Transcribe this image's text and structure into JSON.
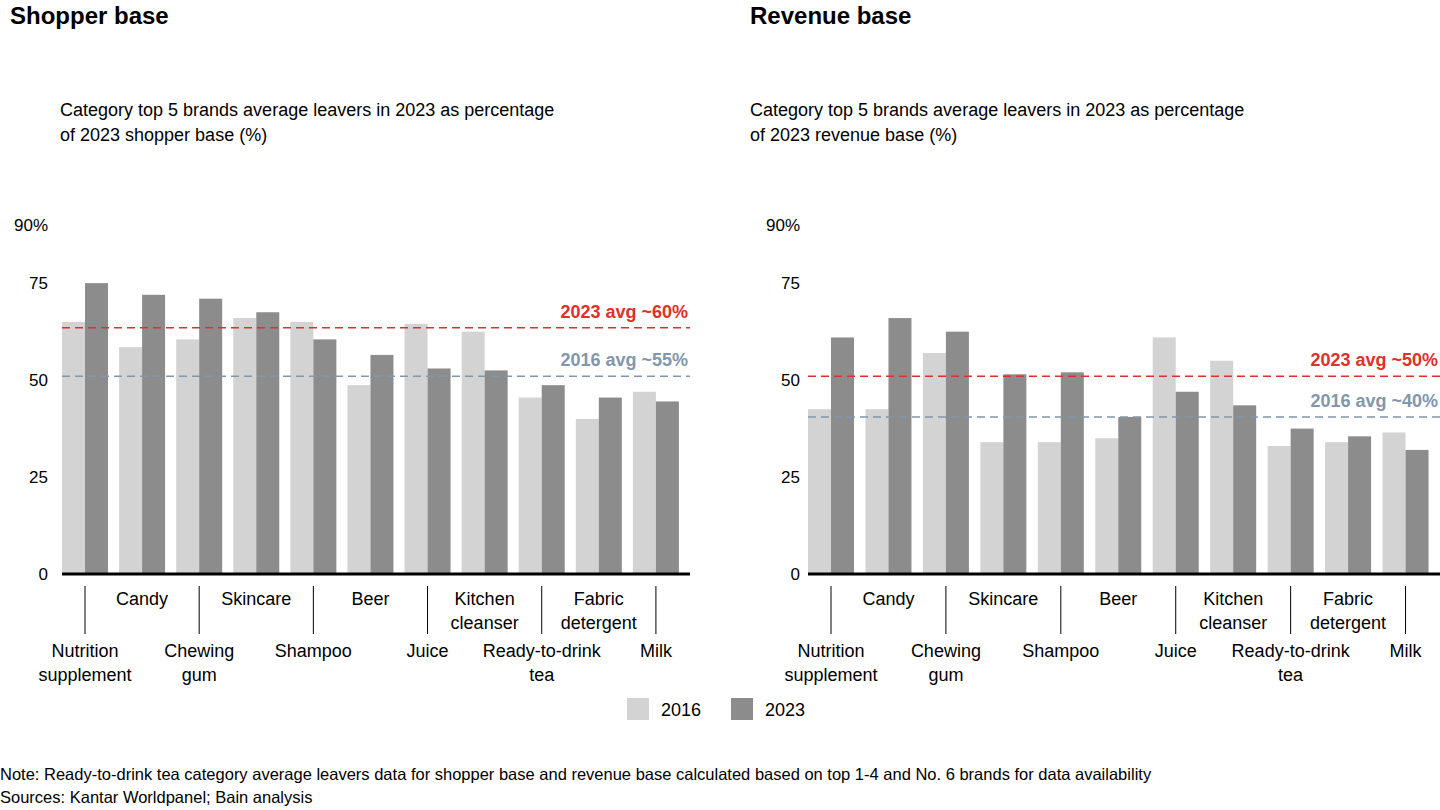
{
  "chart_data": [
    {
      "type": "bar",
      "title": "Shopper base",
      "subtitle": "Category top 5 brands average leavers in 2023 as percentage of 2023 shopper base (%)",
      "categories": [
        "Nutrition supplement",
        "Candy",
        "Chewing gum",
        "Skincare",
        "Shampoo",
        "Beer",
        "Juice",
        "Kitchen cleanser",
        "Ready-to-drink tea",
        "Fabric detergent",
        "Milk"
      ],
      "series": [
        {
          "name": "2016",
          "color": "#d3d3d3",
          "values": [
            65,
            58.5,
            60.5,
            66,
            65,
            48.7,
            64.5,
            62.5,
            45.5,
            40,
            47
          ]
        },
        {
          "name": "2023",
          "color": "#8c8c8c",
          "values": [
            75,
            72,
            71,
            67.5,
            60.5,
            56.5,
            53,
            52.5,
            48.7,
            45.5,
            44.5
          ]
        }
      ],
      "ylim": [
        0,
        90
      ],
      "yticks": [
        0,
        25,
        50,
        75,
        {
          "value": 90,
          "label": "90%"
        }
      ],
      "grid": false,
      "reference_lines": [
        {
          "value": 63.5,
          "label": "2023 avg ~60%",
          "color": "#e0302b"
        },
        {
          "value": 51,
          "label": "2016 avg ~55%",
          "color": "#8297ab"
        }
      ]
    },
    {
      "type": "bar",
      "title": "Revenue base",
      "subtitle": "Category top 5 brands average leavers in 2023 as percentage of 2023 revenue base (%)",
      "categories": [
        "Nutrition supplement",
        "Candy",
        "Chewing gum",
        "Skincare",
        "Shampoo",
        "Beer",
        "Juice",
        "Kitchen cleanser",
        "Ready-to-drink tea",
        "Fabric detergent",
        "Milk"
      ],
      "series": [
        {
          "color": "#d3d3d3",
          "values": [
            42.5,
            42.5,
            57,
            34,
            34,
            35,
            61,
            55,
            33,
            34,
            36.5
          ]
        },
        {
          "color": "#8c8c8c",
          "values": [
            61,
            66,
            62.5,
            51.5,
            52,
            40.5,
            47,
            43.5,
            37.5,
            35.5,
            32
          ]
        }
      ],
      "ylim": [
        0,
        90
      ],
      "yticks": [
        0,
        25,
        50,
        75,
        {
          "value": 90,
          "label": "90%"
        }
      ],
      "grid": false,
      "reference_lines": [
        {
          "value": 51,
          "label": "2023 avg ~50%",
          "color": "#e0302b"
        },
        {
          "value": 40.5,
          "label": "2016 avg ~40%",
          "color": "#8297ab"
        }
      ]
    }
  ],
  "note": "Note: Ready-to-drink tea category average leavers data for shopper base and revenue base calculated based on top 1-4 and No. 6 brands for data availability",
  "source": "Sources: Kantar Worldpanel; Bain analysis"
}
